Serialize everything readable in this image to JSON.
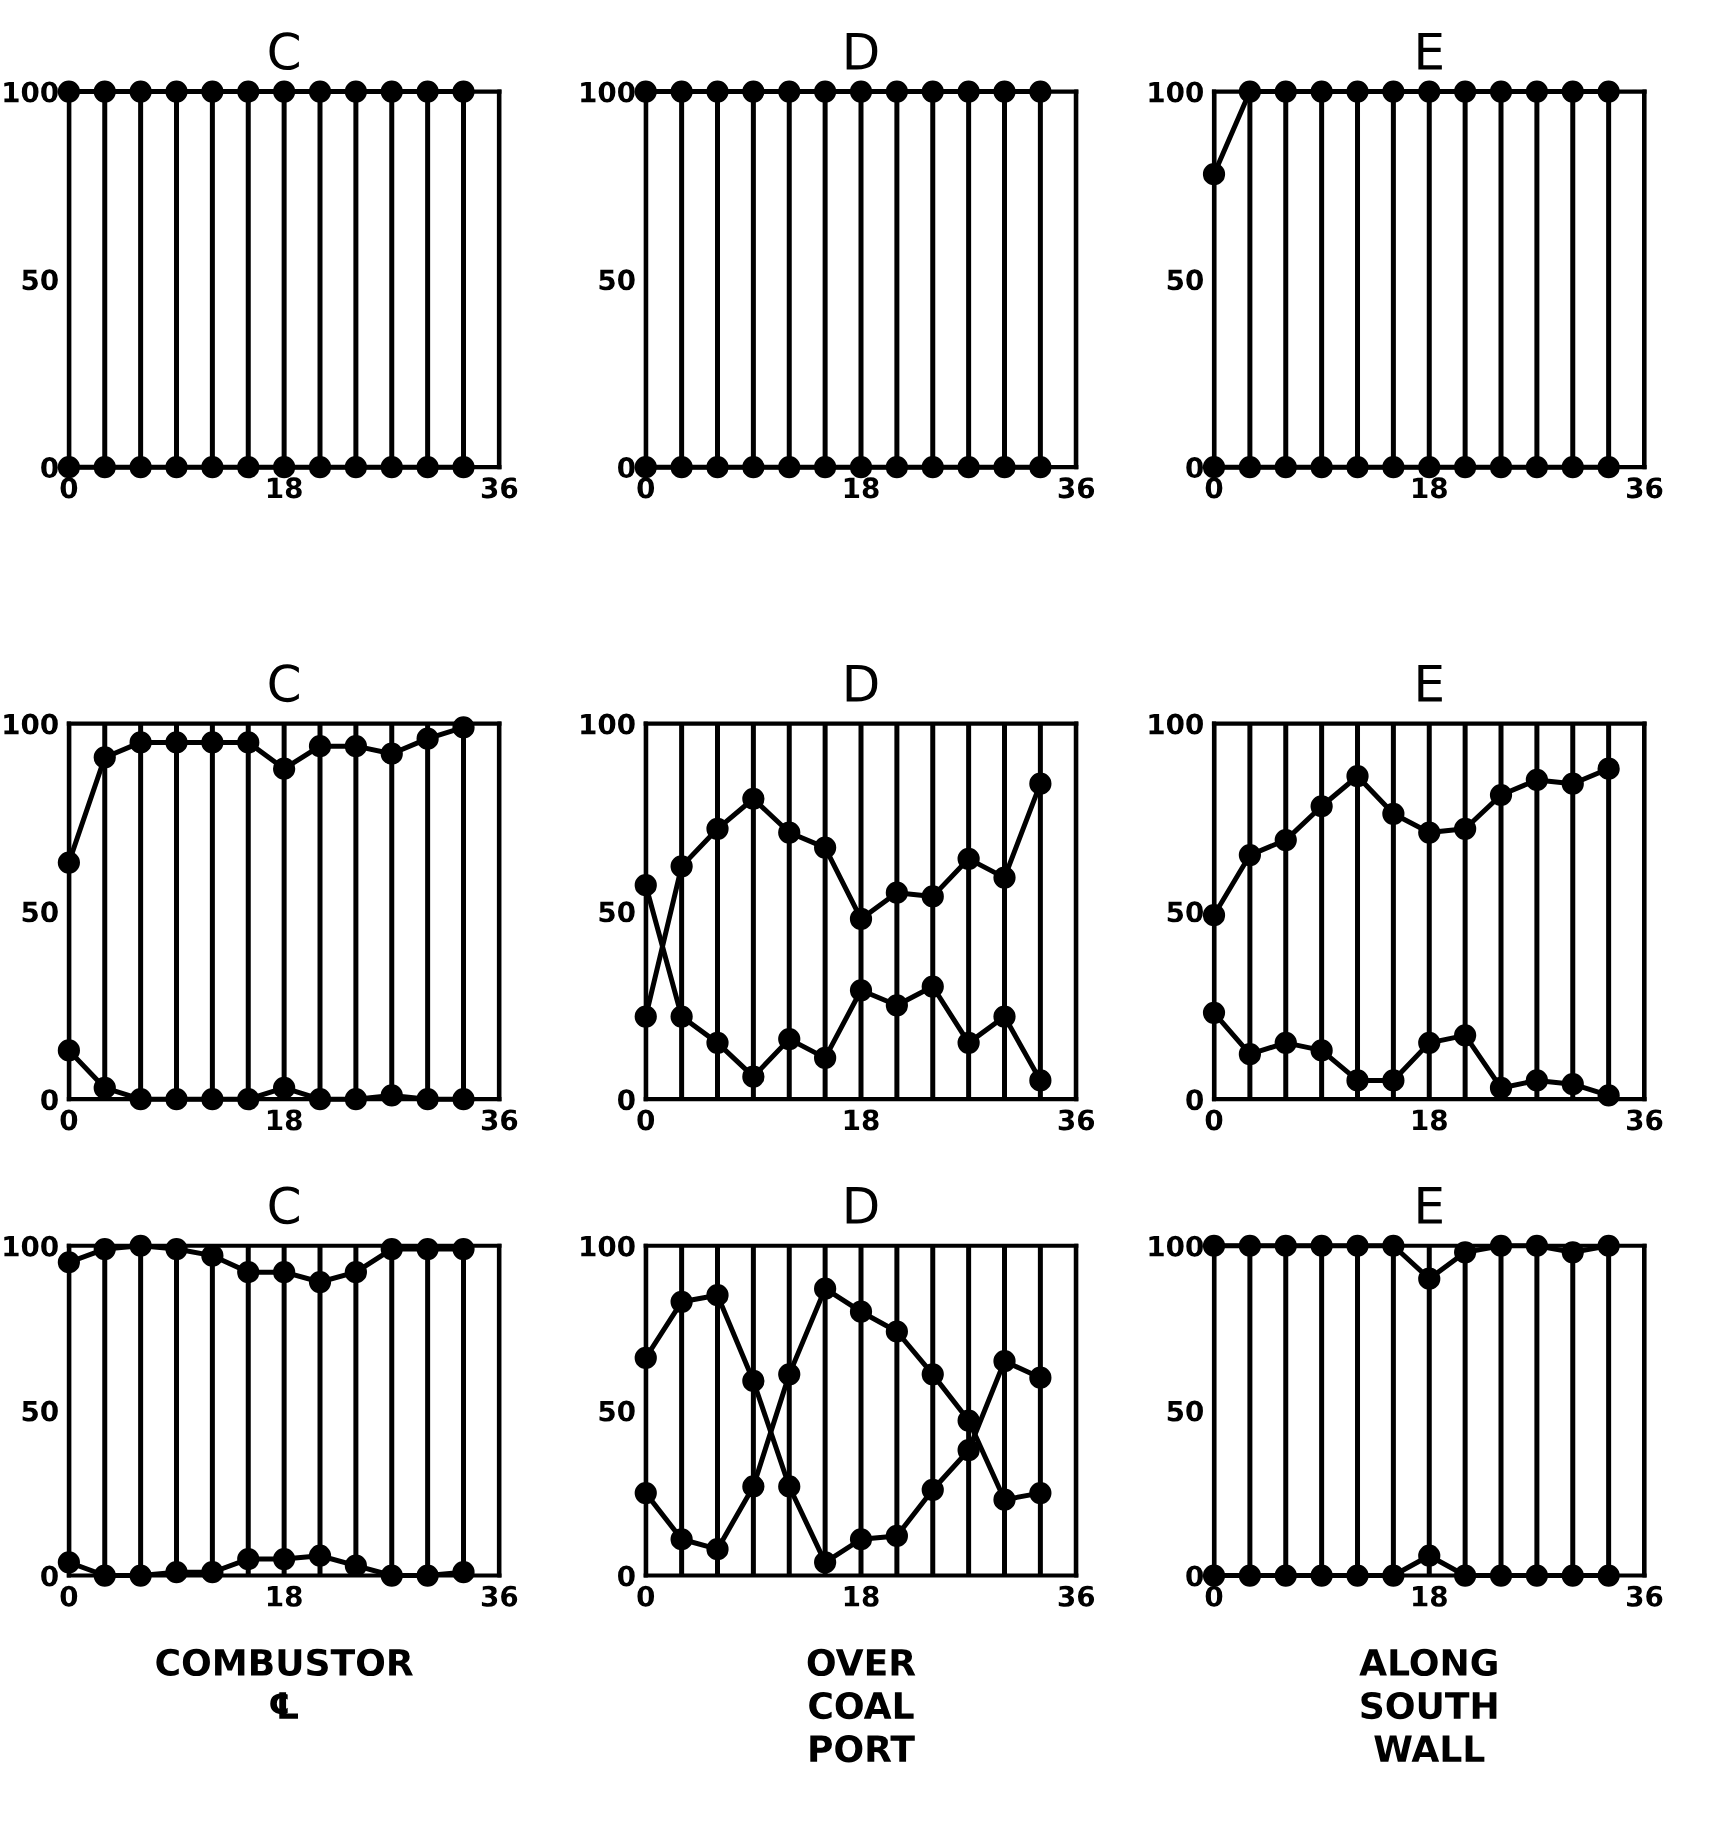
{
  "chart_data": [
    {
      "type": "line",
      "title": "C",
      "x": [
        0,
        3,
        6,
        9,
        12,
        15,
        18,
        21,
        24,
        27,
        30,
        33
      ],
      "marker": "circle",
      "line_style": "solid",
      "grid": "x",
      "xlim": [
        0,
        36
      ],
      "ylim": [
        0,
        100
      ],
      "yticks": [
        0,
        50,
        100
      ],
      "xticks": [
        0,
        {
          "value": 3,
          "label": null
        },
        {
          "value": 6,
          "label": null
        },
        {
          "value": 9,
          "label": null
        },
        {
          "value": 12,
          "label": null
        },
        {
          "value": 15,
          "label": null
        },
        18,
        {
          "value": 21,
          "label": null
        },
        {
          "value": 24,
          "label": null
        },
        {
          "value": 27,
          "label": null
        },
        {
          "value": 30,
          "label": null
        },
        {
          "value": 33,
          "label": null
        },
        36
      ],
      "series": [
        {
          "color": "#000000",
          "values": [
            100,
            100,
            100,
            100,
            100,
            100,
            100,
            100,
            100,
            100,
            100,
            100
          ]
        },
        {
          "color": "#000000",
          "values": [
            0,
            0,
            0,
            0,
            0,
            0,
            0,
            0,
            0,
            0,
            0,
            0
          ]
        }
      ]
    },
    {
      "type": "line",
      "title": "D",
      "x": [
        0,
        3,
        6,
        9,
        12,
        15,
        18,
        21,
        24,
        27,
        30,
        33
      ],
      "marker": "circle",
      "line_style": "solid",
      "grid": "x",
      "xlim": [
        0,
        36
      ],
      "ylim": [
        0,
        100
      ],
      "yticks": [
        0,
        50,
        100
      ],
      "xticks": [
        0,
        {
          "value": 3,
          "label": null
        },
        {
          "value": 6,
          "label": null
        },
        {
          "value": 9,
          "label": null
        },
        {
          "value": 12,
          "label": null
        },
        {
          "value": 15,
          "label": null
        },
        18,
        {
          "value": 21,
          "label": null
        },
        {
          "value": 24,
          "label": null
        },
        {
          "value": 27,
          "label": null
        },
        {
          "value": 30,
          "label": null
        },
        {
          "value": 33,
          "label": null
        },
        36
      ],
      "series": [
        {
          "color": "#000000",
          "values": [
            100,
            100,
            100,
            100,
            100,
            100,
            100,
            100,
            100,
            100,
            100,
            100
          ]
        },
        {
          "color": "#000000",
          "values": [
            0,
            0,
            0,
            0,
            0,
            0,
            0,
            0,
            0,
            0,
            0,
            0
          ]
        }
      ]
    },
    {
      "type": "line",
      "title": "E",
      "x": [
        0,
        3,
        6,
        9,
        12,
        15,
        18,
        21,
        24,
        27,
        30,
        33
      ],
      "marker": "circle",
      "line_style": "solid",
      "grid": "x",
      "xlim": [
        0,
        36
      ],
      "ylim": [
        0,
        100
      ],
      "yticks": [
        0,
        50,
        100
      ],
      "xticks": [
        0,
        {
          "value": 3,
          "label": null
        },
        {
          "value": 6,
          "label": null
        },
        {
          "value": 9,
          "label": null
        },
        {
          "value": 12,
          "label": null
        },
        {
          "value": 15,
          "label": null
        },
        18,
        {
          "value": 21,
          "label": null
        },
        {
          "value": 24,
          "label": null
        },
        {
          "value": 27,
          "label": null
        },
        {
          "value": 30,
          "label": null
        },
        {
          "value": 33,
          "label": null
        },
        36
      ],
      "series": [
        {
          "color": "#000000",
          "values": [
            78,
            100,
            100,
            100,
            100,
            100,
            100,
            100,
            100,
            100,
            100,
            100
          ]
        },
        {
          "color": "#000000",
          "values": [
            0,
            0,
            0,
            0,
            0,
            0,
            0,
            0,
            0,
            0,
            0,
            0
          ]
        }
      ]
    },
    {
      "type": "line",
      "title": "C",
      "x": [
        0,
        3,
        6,
        9,
        12,
        15,
        18,
        21,
        24,
        27,
        30,
        33
      ],
      "marker": "circle",
      "line_style": "solid",
      "grid": "x",
      "xlim": [
        0,
        36
      ],
      "ylim": [
        0,
        100
      ],
      "yticks": [
        0,
        50,
        100
      ],
      "xticks": [
        0,
        {
          "value": 3,
          "label": null
        },
        {
          "value": 6,
          "label": null
        },
        {
          "value": 9,
          "label": null
        },
        {
          "value": 12,
          "label": null
        },
        {
          "value": 15,
          "label": null
        },
        18,
        {
          "value": 21,
          "label": null
        },
        {
          "value": 24,
          "label": null
        },
        {
          "value": 27,
          "label": null
        },
        {
          "value": 30,
          "label": null
        },
        {
          "value": 33,
          "label": null
        },
        36
      ],
      "series": [
        {
          "color": "#000000",
          "values": [
            63,
            91,
            95,
            95,
            95,
            95,
            88,
            94,
            94,
            92,
            96,
            99
          ]
        },
        {
          "color": "#000000",
          "values": [
            13,
            3,
            0,
            0,
            0,
            0,
            3,
            0,
            0,
            1,
            0,
            0
          ]
        }
      ]
    },
    {
      "type": "line",
      "title": "D",
      "x": [
        0,
        3,
        6,
        9,
        12,
        15,
        18,
        21,
        24,
        27,
        30,
        33
      ],
      "marker": "circle",
      "line_style": "solid",
      "grid": "x",
      "xlim": [
        0,
        36
      ],
      "ylim": [
        0,
        100
      ],
      "yticks": [
        0,
        50,
        100
      ],
      "xticks": [
        0,
        {
          "value": 3,
          "label": null
        },
        {
          "value": 6,
          "label": null
        },
        {
          "value": 9,
          "label": null
        },
        {
          "value": 12,
          "label": null
        },
        {
          "value": 15,
          "label": null
        },
        18,
        {
          "value": 21,
          "label": null
        },
        {
          "value": 24,
          "label": null
        },
        {
          "value": 27,
          "label": null
        },
        {
          "value": 30,
          "label": null
        },
        {
          "value": 33,
          "label": null
        },
        36
      ],
      "series": [
        {
          "color": "#000000",
          "values": [
            57,
            22,
            15,
            6,
            16,
            11,
            29,
            25,
            30,
            15,
            22,
            5
          ]
        },
        {
          "color": "#000000",
          "values": [
            22,
            62,
            72,
            80,
            71,
            67,
            48,
            55,
            54,
            64,
            59,
            84
          ]
        }
      ]
    },
    {
      "type": "line",
      "title": "E",
      "x": [
        0,
        3,
        6,
        9,
        12,
        15,
        18,
        21,
        24,
        27,
        30,
        33
      ],
      "marker": "circle",
      "line_style": "solid",
      "grid": "x",
      "xlim": [
        0,
        36
      ],
      "ylim": [
        0,
        100
      ],
      "yticks": [
        0,
        50,
        100
      ],
      "xticks": [
        0,
        {
          "value": 3,
          "label": null
        },
        {
          "value": 6,
          "label": null
        },
        {
          "value": 9,
          "label": null
        },
        {
          "value": 12,
          "label": null
        },
        {
          "value": 15,
          "label": null
        },
        18,
        {
          "value": 21,
          "label": null
        },
        {
          "value": 24,
          "label": null
        },
        {
          "value": 27,
          "label": null
        },
        {
          "value": 30,
          "label": null
        },
        {
          "value": 33,
          "label": null
        },
        36
      ],
      "series": [
        {
          "color": "#000000",
          "values": [
            49,
            65,
            69,
            78,
            86,
            76,
            71,
            72,
            81,
            85,
            84,
            88
          ]
        },
        {
          "color": "#000000",
          "values": [
            23,
            12,
            15,
            13,
            5,
            5,
            15,
            17,
            3,
            5,
            4,
            1
          ]
        }
      ]
    },
    {
      "type": "line",
      "title": "C",
      "x": [
        0,
        3,
        6,
        9,
        12,
        15,
        18,
        21,
        24,
        27,
        30,
        33
      ],
      "marker": "circle",
      "line_style": "solid",
      "grid": "x",
      "xlim": [
        0,
        36
      ],
      "ylim": [
        0,
        100
      ],
      "yticks": [
        0,
        50,
        100
      ],
      "xticks": [
        0,
        {
          "value": 3,
          "label": null
        },
        {
          "value": 6,
          "label": null
        },
        {
          "value": 9,
          "label": null
        },
        {
          "value": 12,
          "label": null
        },
        {
          "value": 15,
          "label": null
        },
        18,
        {
          "value": 21,
          "label": null
        },
        {
          "value": 24,
          "label": null
        },
        {
          "value": 27,
          "label": null
        },
        {
          "value": 30,
          "label": null
        },
        {
          "value": 33,
          "label": null
        },
        36
      ],
      "annotations": [
        "COMBUSTOR\n℄"
      ],
      "series": [
        {
          "color": "#000000",
          "values": [
            95,
            99,
            100,
            99,
            97,
            92,
            92,
            89,
            92,
            99,
            99,
            99
          ]
        },
        {
          "color": "#000000",
          "values": [
            4,
            0,
            0,
            1,
            1,
            5,
            5,
            6,
            3,
            0,
            0,
            1
          ]
        }
      ]
    },
    {
      "type": "line",
      "title": "D",
      "x": [
        0,
        3,
        6,
        9,
        12,
        15,
        18,
        21,
        24,
        27,
        30,
        33
      ],
      "marker": "circle",
      "line_style": "solid",
      "grid": "x",
      "xlim": [
        0,
        36
      ],
      "ylim": [
        0,
        100
      ],
      "yticks": [
        0,
        50,
        100
      ],
      "xticks": [
        0,
        {
          "value": 3,
          "label": null
        },
        {
          "value": 6,
          "label": null
        },
        {
          "value": 9,
          "label": null
        },
        {
          "value": 12,
          "label": null
        },
        {
          "value": 15,
          "label": null
        },
        18,
        {
          "value": 21,
          "label": null
        },
        {
          "value": 24,
          "label": null
        },
        {
          "value": 27,
          "label": null
        },
        {
          "value": 30,
          "label": null
        },
        {
          "value": 33,
          "label": null
        },
        36
      ],
      "annotations": [
        "OVER\nCOAL\nPORT"
      ],
      "series": [
        {
          "color": "#000000",
          "values": [
            66,
            83,
            85,
            59,
            27,
            4,
            11,
            12,
            26,
            38,
            65,
            60
          ]
        },
        {
          "color": "#000000",
          "values": [
            25,
            11,
            8,
            27,
            61,
            87,
            80,
            74,
            61,
            47,
            23,
            25
          ]
        }
      ]
    },
    {
      "type": "line",
      "title": "E",
      "x": [
        0,
        3,
        6,
        9,
        12,
        15,
        18,
        21,
        24,
        27,
        30,
        33
      ],
      "marker": "circle",
      "line_style": "solid",
      "grid": "x",
      "xlim": [
        0,
        36
      ],
      "ylim": [
        0,
        100
      ],
      "yticks": [
        0,
        50,
        100
      ],
      "xticks": [
        0,
        {
          "value": 3,
          "label": null
        },
        {
          "value": 6,
          "label": null
        },
        {
          "value": 9,
          "label": null
        },
        {
          "value": 12,
          "label": null
        },
        {
          "value": 15,
          "label": null
        },
        18,
        {
          "value": 21,
          "label": null
        },
        {
          "value": 24,
          "label": null
        },
        {
          "value": 27,
          "label": null
        },
        {
          "value": 30,
          "label": null
        },
        {
          "value": 33,
          "label": null
        },
        36
      ],
      "annotations": [
        "ALONG\nSOUTH\nWALL"
      ],
      "series": [
        {
          "color": "#000000",
          "values": [
            100,
            100,
            100,
            100,
            100,
            100,
            90,
            98,
            100,
            100,
            98,
            100
          ]
        },
        {
          "color": "#000000",
          "values": [
            0,
            0,
            0,
            0,
            0,
            0,
            6,
            0,
            0,
            0,
            0,
            0
          ]
        }
      ]
    }
  ]
}
